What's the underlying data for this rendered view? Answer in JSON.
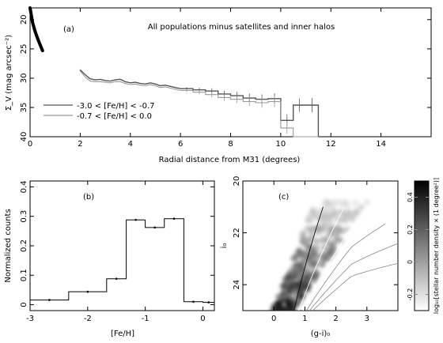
{
  "chart_data": [
    {
      "type": "line",
      "panel_label": "(a)",
      "title": "All populations minus satellites and inner halos",
      "xlabel": "Radial distance from M31 (degrees)",
      "ylabel": "Σ_V (mag arcsec⁻²)",
      "xlim": [
        0,
        16
      ],
      "ylim": [
        40,
        18
      ],
      "xticks": [
        0,
        2,
        4,
        6,
        8,
        10,
        12,
        14
      ],
      "yticks": [
        20,
        25,
        30,
        35,
        40
      ],
      "grid": false,
      "legend_position": "bottom-left",
      "series": [
        {
          "name": "-3.0 < [Fe/H] < -0.7",
          "color": "#555555",
          "x": [
            2.0,
            2.2,
            2.4,
            2.6,
            2.8,
            3.0,
            3.2,
            3.4,
            3.6,
            3.8,
            4.0,
            4.2,
            4.4,
            4.6,
            4.8,
            5.0,
            5.2,
            5.4,
            5.6,
            5.8,
            6.0,
            6.5,
            7.0,
            7.5,
            8.0,
            8.5,
            9.0,
            9.5,
            10.0,
            10.5,
            11.0
          ],
          "y": [
            28.6,
            29.4,
            30.1,
            30.3,
            30.2,
            30.4,
            30.5,
            30.3,
            30.2,
            30.6,
            30.8,
            30.7,
            30.9,
            31.0,
            30.8,
            31.0,
            31.3,
            31.2,
            31.4,
            31.6,
            31.8,
            32.0,
            32.2,
            32.7,
            33.0,
            33.4,
            33.6,
            33.5,
            37.2,
            34.6,
            34.6
          ]
        },
        {
          "name": "-0.7 < [Fe/H] < 0.0",
          "color": "#999999",
          "x": [
            2.0,
            2.2,
            2.4,
            2.6,
            2.8,
            3.0,
            3.2,
            3.4,
            3.6,
            3.8,
            4.0,
            4.2,
            4.4,
            4.6,
            4.8,
            5.0,
            5.2,
            5.4,
            5.6,
            5.8,
            6.0,
            6.5,
            7.0,
            7.5,
            8.0,
            8.5,
            9.0,
            9.5,
            10.0,
            10.5,
            11.0
          ],
          "y": [
            28.8,
            29.8,
            30.5,
            30.6,
            30.6,
            30.7,
            30.8,
            30.6,
            30.6,
            30.9,
            31.1,
            31.0,
            31.2,
            31.3,
            31.1,
            31.3,
            31.6,
            31.5,
            31.7,
            31.9,
            32.1,
            32.4,
            32.8,
            33.3,
            33.6,
            34.0,
            34.2,
            34.0,
            38.5,
            40.0,
            40.0
          ]
        },
        {
          "name": "",
          "color": "#000000",
          "x": [
            0.0,
            0.1,
            0.2,
            0.3,
            0.4,
            0.5
          ],
          "y": [
            18.0,
            20.5,
            22.0,
            23.2,
            24.3,
            25.3
          ]
        }
      ]
    },
    {
      "type": "bar",
      "panel_label": "(b)",
      "title": "",
      "xlabel": "[Fe/H]",
      "ylabel": "Normalized counts",
      "xlim": [
        -3,
        0.2
      ],
      "ylim": [
        -0.02,
        0.42
      ],
      "xticks": [
        -3,
        -2,
        -1,
        0
      ],
      "yticks": [
        0,
        0.1,
        0.2,
        0.3,
        0.4
      ],
      "grid": false,
      "bin_edges": [
        -3.0,
        -2.33,
        -1.67,
        -1.33,
        -1.0,
        -0.67,
        -0.33,
        0.0,
        0.2
      ],
      "values": [
        0.016,
        0.044,
        0.088,
        0.288,
        0.262,
        0.292,
        0.01,
        0.008
      ]
    },
    {
      "type": "heatmap",
      "panel_label": "(c)",
      "title": "",
      "xlabel": "(g-i)₀",
      "ylabel": "i₀",
      "xlim": [
        -1,
        4
      ],
      "ylim": [
        25,
        20
      ],
      "xticks": [
        0,
        1,
        2,
        3
      ],
      "yticks": [
        20,
        22,
        24
      ],
      "grid": false,
      "colorbar": {
        "label": "log₁₀[stellar number density × (1 degree²)]",
        "range": [
          -0.3,
          0.5
        ],
        "ticks": [
          -0.2,
          0.0,
          0.2,
          0.4
        ],
        "position": "right"
      }
    }
  ]
}
